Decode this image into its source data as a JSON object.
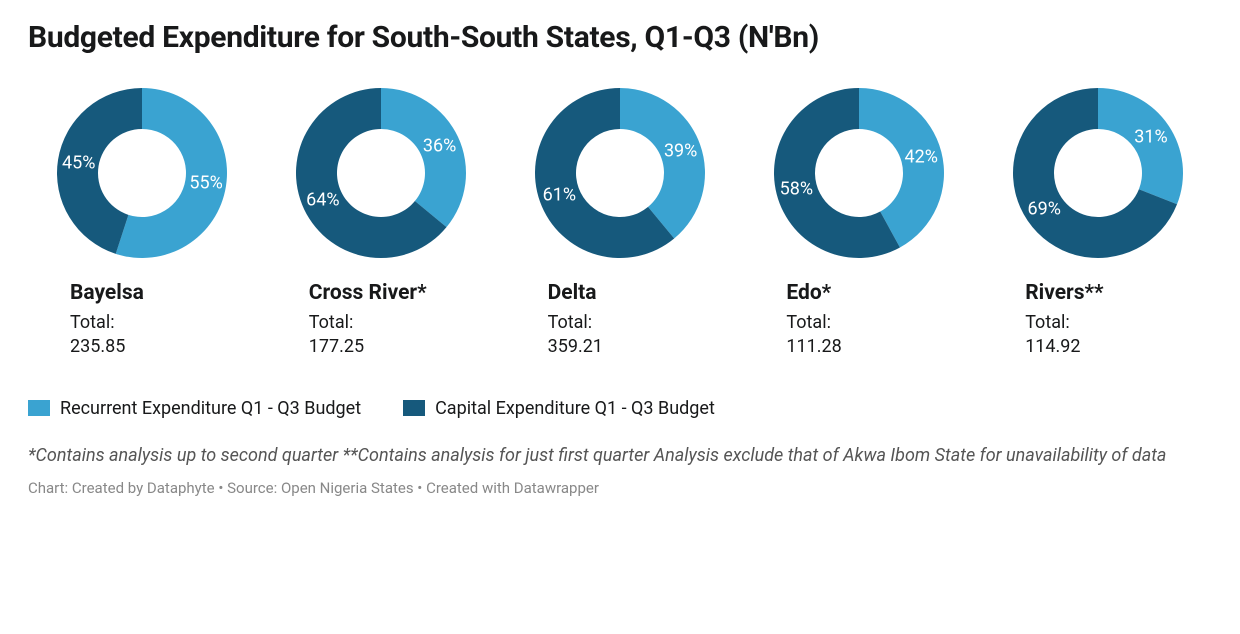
{
  "title": "Budgeted Expenditure for South-South States, Q1-Q3 (N'Bn)",
  "colors": {
    "recurrent": "#3aa3d1",
    "capital": "#16597c",
    "background": "#ffffff",
    "label_text": "#ffffff",
    "body_text": "#18191a",
    "footnote_text": "#555555",
    "credit_text": "#888888"
  },
  "donut": {
    "outer_radius": 85,
    "inner_radius": 44,
    "start_angle_deg": 0
  },
  "charts": [
    {
      "name": "Bayelsa",
      "recurrent_pct": 55,
      "capital_pct": 45,
      "total": "235.85"
    },
    {
      "name": "Cross River*",
      "recurrent_pct": 36,
      "capital_pct": 64,
      "total": "177.25"
    },
    {
      "name": "Delta",
      "recurrent_pct": 39,
      "capital_pct": 61,
      "total": "359.21"
    },
    {
      "name": "Edo*",
      "recurrent_pct": 42,
      "capital_pct": 58,
      "total": "111.28"
    },
    {
      "name": "Rivers**",
      "recurrent_pct": 31,
      "capital_pct": 69,
      "total": "114.92"
    }
  ],
  "legend": {
    "recurrent": "Recurrent Expenditure Q1 - Q3 Budget",
    "capital": "Capital Expenditure Q1 - Q3 Budget"
  },
  "total_label": "Total:",
  "footnote": "*Contains analysis up to second quarter **Contains analysis for just first quarter Analysis exclude that of Akwa Ibom State for unavailability of data",
  "credit": "Chart: Created by Dataphyte • Source: Open Nigeria States • Created with Datawrapper"
}
